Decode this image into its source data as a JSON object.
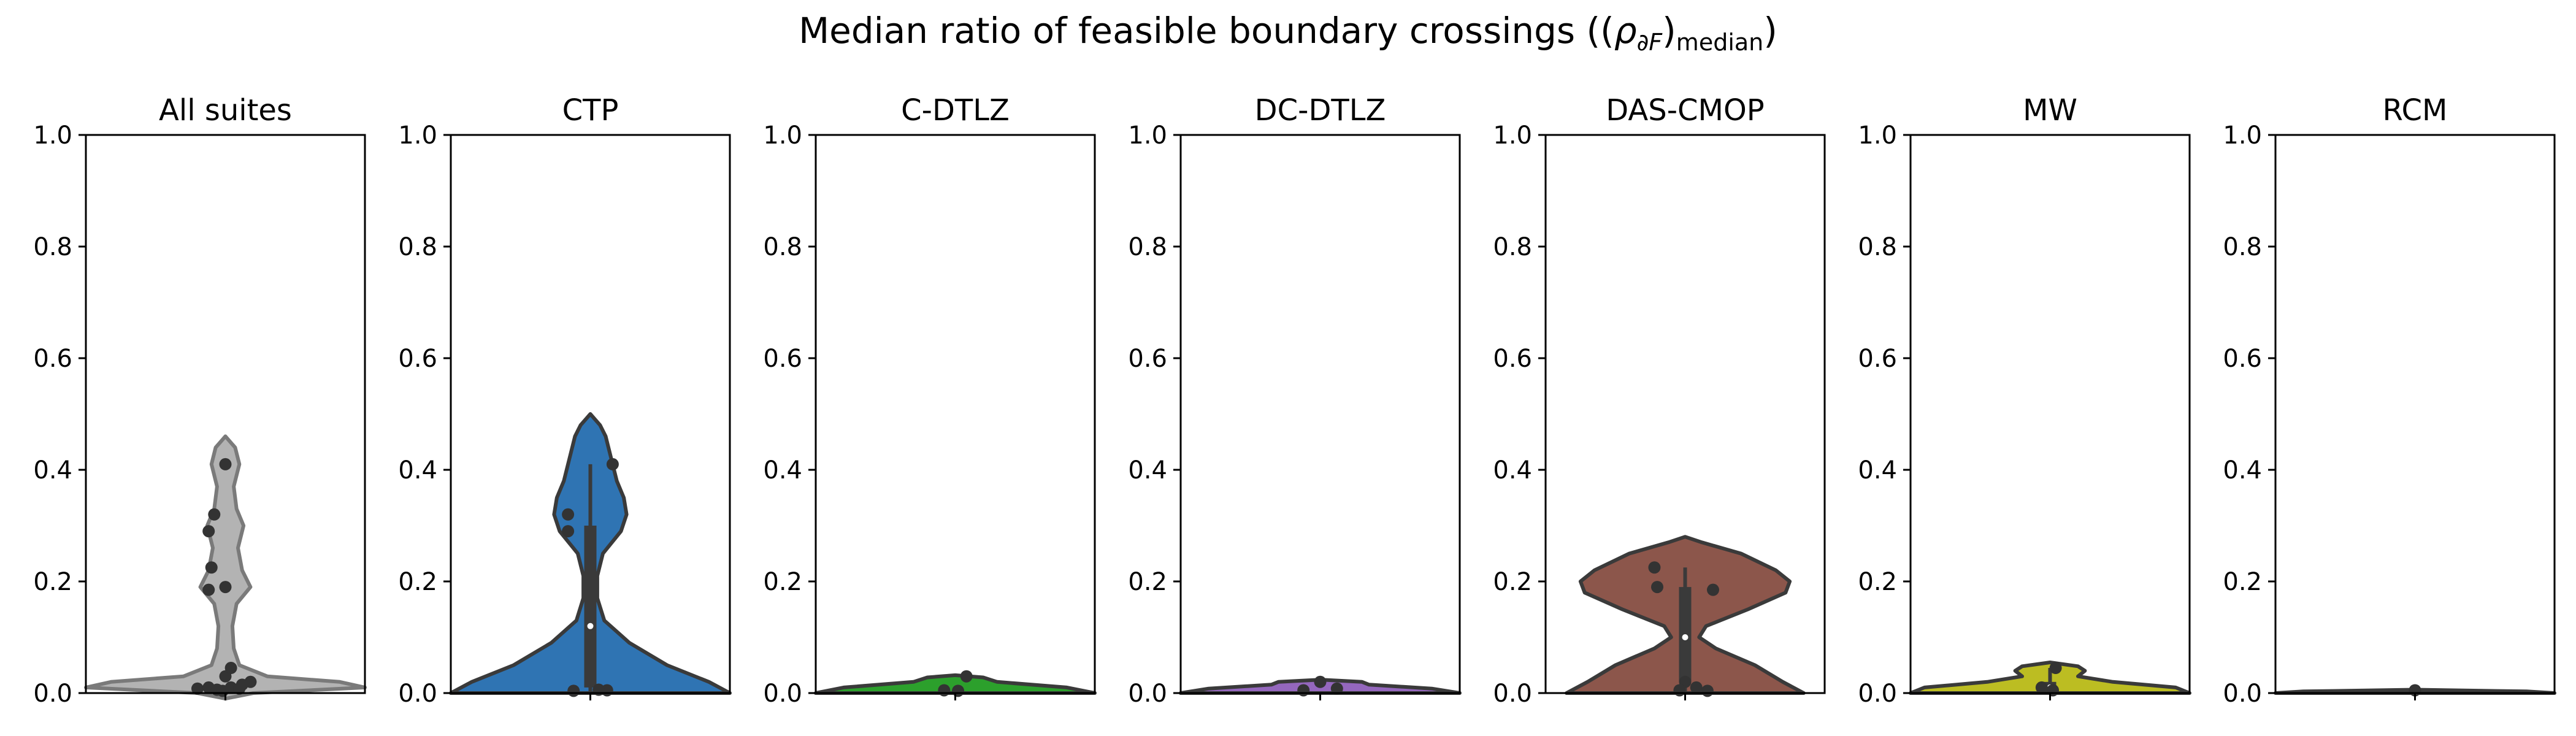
{
  "title_text": "Median ratio of feasible boundary crossings ((",
  "title_symbol": "ρ",
  "title_sub1": "∂F",
  "title_close": ")",
  "title_sub2": "median",
  "title_end": ")",
  "chart_data": {
    "type": "violin",
    "ylim": [
      0,
      1
    ],
    "yticks": [
      "0.0",
      "0.2",
      "0.4",
      "0.6",
      "0.8",
      "1.0"
    ],
    "panels": [
      {
        "title": "All suites",
        "color": "#b3b3b3",
        "edge": "#7a7a7a",
        "width_scale": 0.5,
        "profile": [
          [
            -0.01,
            0.0
          ],
          [
            0.0,
            0.2
          ],
          [
            0.01,
            1.0
          ],
          [
            0.02,
            0.82
          ],
          [
            0.03,
            0.3
          ],
          [
            0.05,
            0.1
          ],
          [
            0.08,
            0.06
          ],
          [
            0.12,
            0.05
          ],
          [
            0.16,
            0.08
          ],
          [
            0.19,
            0.18
          ],
          [
            0.22,
            0.12
          ],
          [
            0.26,
            0.09
          ],
          [
            0.3,
            0.13
          ],
          [
            0.33,
            0.08
          ],
          [
            0.37,
            0.06
          ],
          [
            0.41,
            0.1
          ],
          [
            0.44,
            0.07
          ],
          [
            0.46,
            0.0
          ]
        ],
        "box": null,
        "points": [
          [
            0.0,
            0.41
          ],
          [
            -0.04,
            0.32
          ],
          [
            -0.06,
            0.29
          ],
          [
            -0.05,
            0.225
          ],
          [
            -0.06,
            0.185
          ],
          [
            0.0,
            0.19
          ],
          [
            -0.1,
            0.008
          ],
          [
            -0.06,
            0.01
          ],
          [
            -0.03,
            0.006
          ],
          [
            0.02,
            0.01
          ],
          [
            0.05,
            0.008
          ],
          [
            0.09,
            0.02
          ],
          [
            0.06,
            0.015
          ],
          [
            0.0,
            0.03
          ],
          [
            0.02,
            0.045
          ],
          [
            -0.01,
            0.004
          ]
        ]
      },
      {
        "title": "CTP",
        "color": "#2f74b3",
        "edge": "#3a3a3a",
        "width_scale": 0.5,
        "profile": [
          [
            0.0,
            0.0
          ],
          [
            0.0,
            1.0
          ],
          [
            0.02,
            0.85
          ],
          [
            0.05,
            0.55
          ],
          [
            0.09,
            0.28
          ],
          [
            0.13,
            0.1
          ],
          [
            0.17,
            0.05
          ],
          [
            0.21,
            0.05
          ],
          [
            0.25,
            0.09
          ],
          [
            0.29,
            0.22
          ],
          [
            0.32,
            0.26
          ],
          [
            0.35,
            0.24
          ],
          [
            0.38,
            0.19
          ],
          [
            0.42,
            0.15
          ],
          [
            0.46,
            0.11
          ],
          [
            0.48,
            0.07
          ],
          [
            0.5,
            0.0
          ]
        ],
        "box": {
          "q1": 0.01,
          "q3": 0.3,
          "median": 0.12,
          "lo": 0.0,
          "hi": 0.41
        },
        "points": [
          [
            0.08,
            0.41
          ],
          [
            -0.08,
            0.32
          ],
          [
            -0.08,
            0.29
          ],
          [
            0.06,
            0.005
          ],
          [
            -0.06,
            0.004
          ],
          [
            0.03,
            0.006
          ]
        ]
      },
      {
        "title": "C-DTLZ",
        "color": "#2ca02c",
        "edge": "#3a3a3a",
        "width_scale": 0.5,
        "profile": [
          [
            0.0,
            0.0
          ],
          [
            0.0,
            1.0
          ],
          [
            0.01,
            0.8
          ],
          [
            0.02,
            0.3
          ],
          [
            0.028,
            0.2
          ],
          [
            0.032,
            0.0
          ]
        ],
        "box": null,
        "points": [
          [
            0.04,
            0.03
          ],
          [
            -0.04,
            0.005
          ],
          [
            0.01,
            0.004
          ]
        ]
      },
      {
        "title": "DC-DTLZ",
        "color": "#9467bd",
        "edge": "#3a3a3a",
        "width_scale": 0.5,
        "profile": [
          [
            0.0,
            0.0
          ],
          [
            0.0,
            1.0
          ],
          [
            0.008,
            0.8
          ],
          [
            0.015,
            0.35
          ],
          [
            0.02,
            0.3
          ],
          [
            0.024,
            0.0
          ]
        ],
        "box": null,
        "points": [
          [
            -0.06,
            0.005
          ],
          [
            0.0,
            0.02
          ],
          [
            0.06,
            0.008
          ]
        ]
      },
      {
        "title": "DAS-CMOP",
        "color": "#8c564b",
        "edge": "#3a3a3a",
        "width_scale": 0.5,
        "profile": [
          [
            0.0,
            0.0
          ],
          [
            0.0,
            0.85
          ],
          [
            0.02,
            0.7
          ],
          [
            0.05,
            0.5
          ],
          [
            0.08,
            0.22
          ],
          [
            0.1,
            0.1
          ],
          [
            0.12,
            0.15
          ],
          [
            0.15,
            0.45
          ],
          [
            0.18,
            0.72
          ],
          [
            0.2,
            0.75
          ],
          [
            0.22,
            0.65
          ],
          [
            0.25,
            0.4
          ],
          [
            0.27,
            0.12
          ],
          [
            0.28,
            0.0
          ]
        ],
        "box": {
          "q1": 0.02,
          "q3": 0.19,
          "median": 0.1,
          "lo": 0.0,
          "hi": 0.225
        },
        "points": [
          [
            -0.11,
            0.225
          ],
          [
            -0.1,
            0.19
          ],
          [
            0.1,
            0.185
          ],
          [
            0.0,
            0.02
          ],
          [
            0.04,
            0.01
          ],
          [
            -0.02,
            0.005
          ],
          [
            0.08,
            0.004
          ]
        ]
      },
      {
        "title": "MW",
        "color": "#bcbd22",
        "edge": "#3a3a3a",
        "width_scale": 0.5,
        "profile": [
          [
            0.0,
            0.0
          ],
          [
            0.0,
            1.0
          ],
          [
            0.01,
            0.9
          ],
          [
            0.02,
            0.45
          ],
          [
            0.03,
            0.2
          ],
          [
            0.04,
            0.25
          ],
          [
            0.048,
            0.2
          ],
          [
            0.055,
            0.0
          ]
        ],
        "box": {
          "q1": 0.0,
          "q3": 0.02,
          "median": 0.01,
          "lo": 0.0,
          "hi": 0.045
        },
        "points": [
          [
            0.02,
            0.045
          ],
          [
            -0.03,
            0.01
          ],
          [
            0.01,
            0.005
          ]
        ]
      },
      {
        "title": "RCM",
        "color": "#17becf",
        "edge": "#3a3a3a",
        "width_scale": 0.5,
        "profile": [
          [
            0.0,
            0.0
          ],
          [
            0.0,
            1.0
          ],
          [
            0.003,
            0.8
          ],
          [
            0.006,
            0.0
          ]
        ],
        "box": null,
        "points": [
          [
            0.0,
            0.005
          ]
        ]
      }
    ]
  }
}
